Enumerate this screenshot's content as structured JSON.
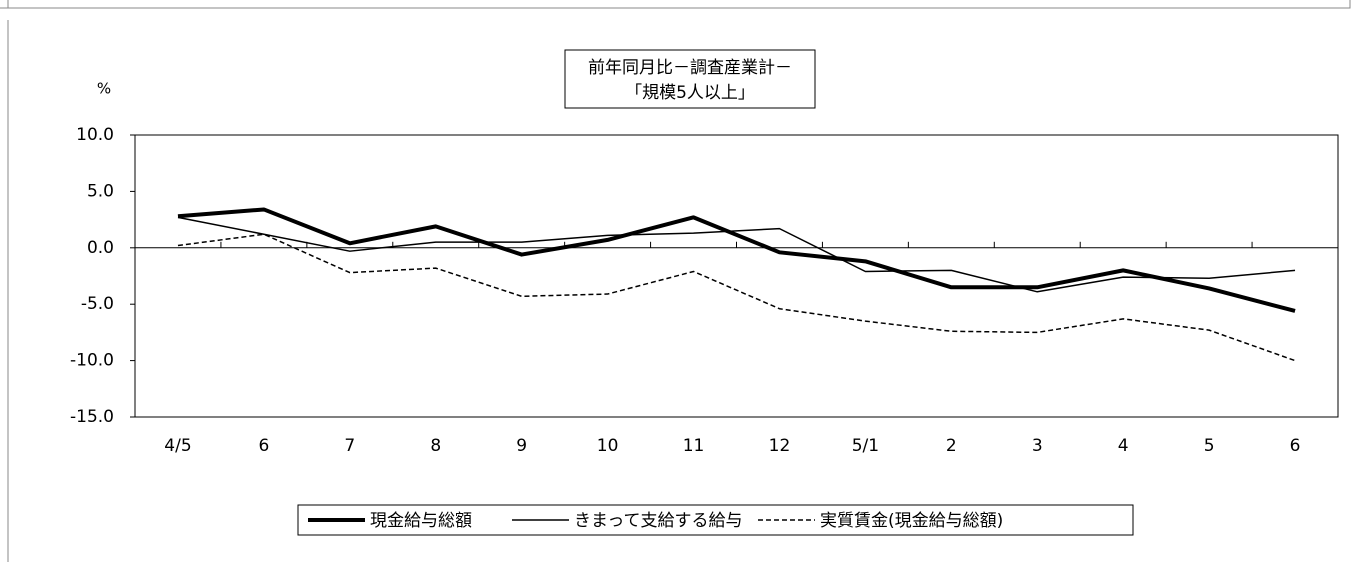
{
  "chart_data": {
    "type": "line",
    "title": "前年同月比－調査産業計－",
    "subtitle": "「規模5人以上」",
    "y_label": "%",
    "categories": [
      "4/5",
      "6",
      "7",
      "8",
      "9",
      "10",
      "11",
      "12",
      "5/1",
      "2",
      "3",
      "4",
      "5",
      "6"
    ],
    "series": [
      {
        "name": "現金給与総額",
        "color": "#000000",
        "line_width": 4,
        "dashed": false,
        "values": [
          2.8,
          3.4,
          0.4,
          1.9,
          -0.6,
          0.7,
          2.7,
          -0.4,
          -1.2,
          -3.5,
          -3.5,
          -2.0,
          -3.6,
          -5.6
        ]
      },
      {
        "name": "きまって支給する給与",
        "color": "#000000",
        "line_width": 1.5,
        "dashed": false,
        "values": [
          2.7,
          1.2,
          -0.3,
          0.5,
          0.5,
          1.1,
          1.3,
          1.7,
          -2.1,
          -2.0,
          -3.9,
          -2.6,
          -2.7,
          -2.0
        ]
      },
      {
        "name": "実質賃金(現金給与総額)",
        "color": "#000000",
        "line_width": 1.5,
        "dashed": true,
        "values": [
          0.2,
          1.2,
          -2.2,
          -1.8,
          -4.3,
          -4.1,
          -2.1,
          -5.4,
          -6.5,
          -7.4,
          -7.5,
          -6.3,
          -7.3,
          -10.0
        ]
      }
    ],
    "ylim": [
      -15,
      10
    ],
    "yticks": [
      {
        "value": -15,
        "label": "-15.0"
      },
      {
        "value": -10,
        "label": "-10.0"
      },
      {
        "value": -5,
        "label": "-5.0"
      },
      {
        "value": 0,
        "label": "0.0"
      },
      {
        "value": 5,
        "label": "5.0"
      },
      {
        "value": 10,
        "label": "10.0"
      }
    ]
  }
}
